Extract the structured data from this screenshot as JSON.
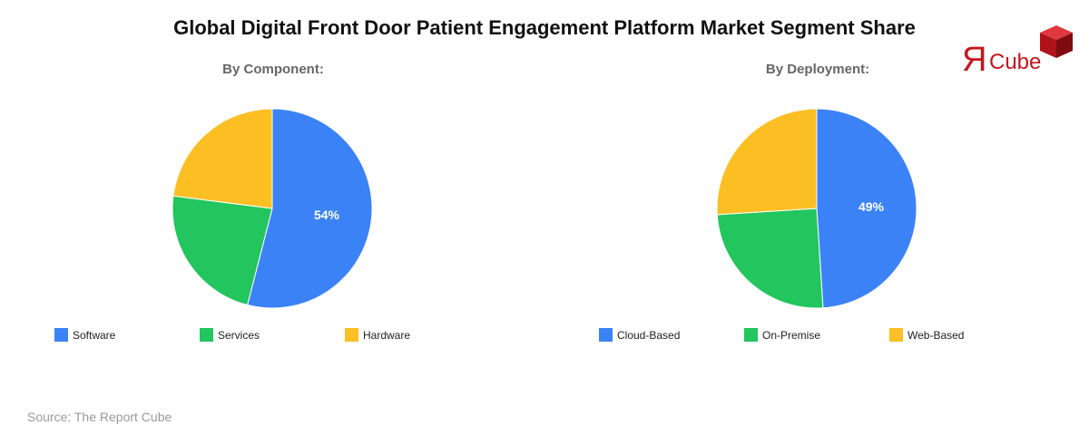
{
  "title": "Global Digital Front Door Patient Engagement Platform Market Segment Share",
  "source": "Source: The Report Cube",
  "logo": {
    "mark": "Я",
    "text": "Cube",
    "color": "#c4161c"
  },
  "colors": {
    "blue": "#3b82f6",
    "green": "#22c55e",
    "yellow": "#fbbf24"
  },
  "charts": [
    {
      "subtitle": "By Component:",
      "label": "54%",
      "legend": [
        {
          "label": "Software",
          "color": "#3b82f6"
        },
        {
          "label": "Services",
          "color": "#22c55e"
        },
        {
          "label": "Hardware",
          "color": "#fbbf24"
        }
      ]
    },
    {
      "subtitle": "By Deployment:",
      "label": "49%",
      "legend": [
        {
          "label": "Cloud-Based",
          "color": "#3b82f6"
        },
        {
          "label": "On-Premise",
          "color": "#22c55e"
        },
        {
          "label": "Web-Based",
          "color": "#fbbf24"
        }
      ]
    }
  ],
  "chart_data": [
    {
      "type": "pie",
      "title": "By Component:",
      "categories": [
        "Software",
        "Services",
        "Hardware"
      ],
      "values": [
        54,
        23,
        23
      ],
      "colors": [
        "#3b82f6",
        "#22c55e",
        "#fbbf24"
      ],
      "data_labels": [
        "54%",
        "",
        ""
      ],
      "legend_position": "bottom"
    },
    {
      "type": "pie",
      "title": "By Deployment:",
      "categories": [
        "Cloud-Based",
        "On-Premise",
        "Web-Based"
      ],
      "values": [
        49,
        25,
        26
      ],
      "colors": [
        "#3b82f6",
        "#22c55e",
        "#fbbf24"
      ],
      "data_labels": [
        "49%",
        "",
        ""
      ],
      "legend_position": "bottom"
    }
  ]
}
